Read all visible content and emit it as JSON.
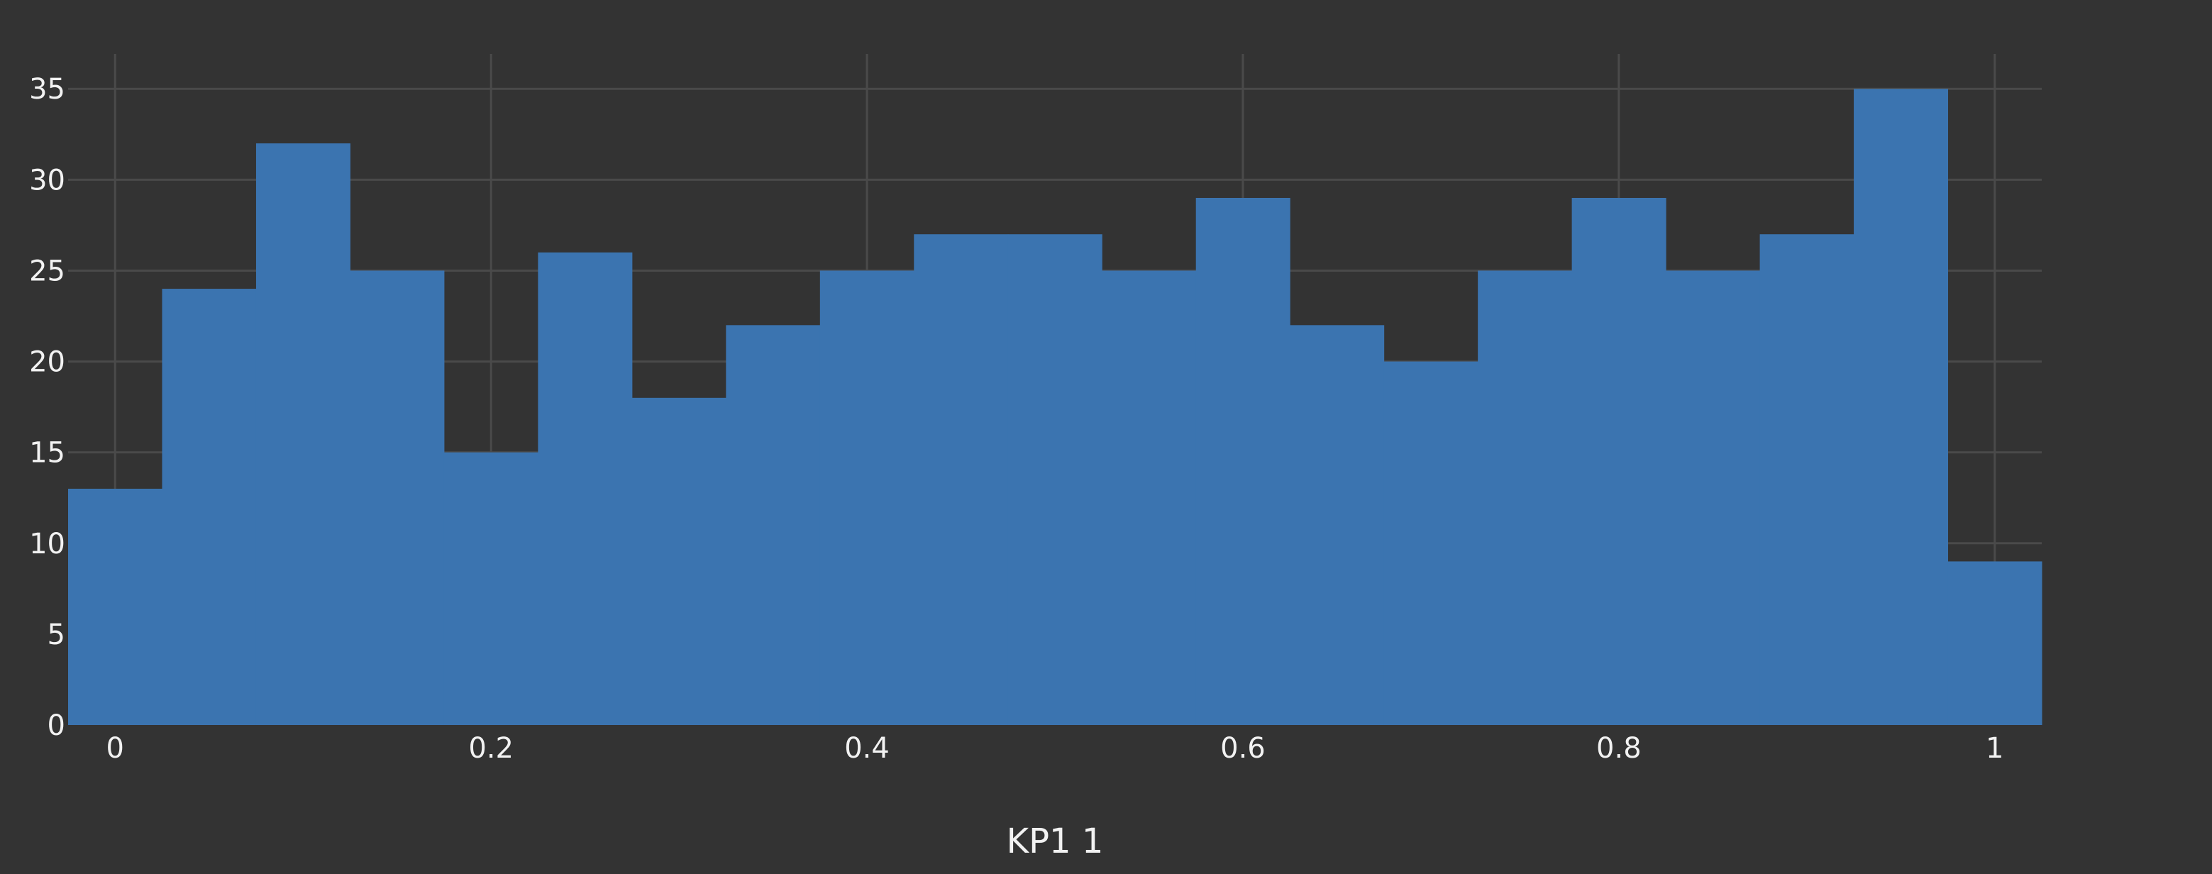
{
  "chart_data": {
    "type": "histogram",
    "xlabel": "KP1 1",
    "ylabel": "",
    "title": "",
    "bin_width": 0.05,
    "bin_start": -0.025,
    "x_range": [
      -0.025,
      1.025
    ],
    "ylim": [
      0,
      37
    ],
    "x_ticks": [
      0,
      0.2,
      0.4,
      0.6,
      0.8,
      1
    ],
    "x_tick_labels": [
      "0",
      "0.2",
      "0.4",
      "0.6",
      "0.8",
      "1"
    ],
    "y_ticks": [
      0,
      5,
      10,
      15,
      20,
      25,
      30,
      35
    ],
    "y_tick_labels": [
      "0",
      "5",
      "10",
      "15",
      "20",
      "25",
      "30",
      "35"
    ],
    "counts": [
      13,
      24,
      32,
      25,
      15,
      26,
      18,
      22,
      25,
      27,
      27,
      25,
      29,
      22,
      20,
      25,
      29,
      25,
      27,
      35,
      9
    ],
    "grid": true,
    "bar_color": "#3b74b0",
    "background": "#333333"
  }
}
